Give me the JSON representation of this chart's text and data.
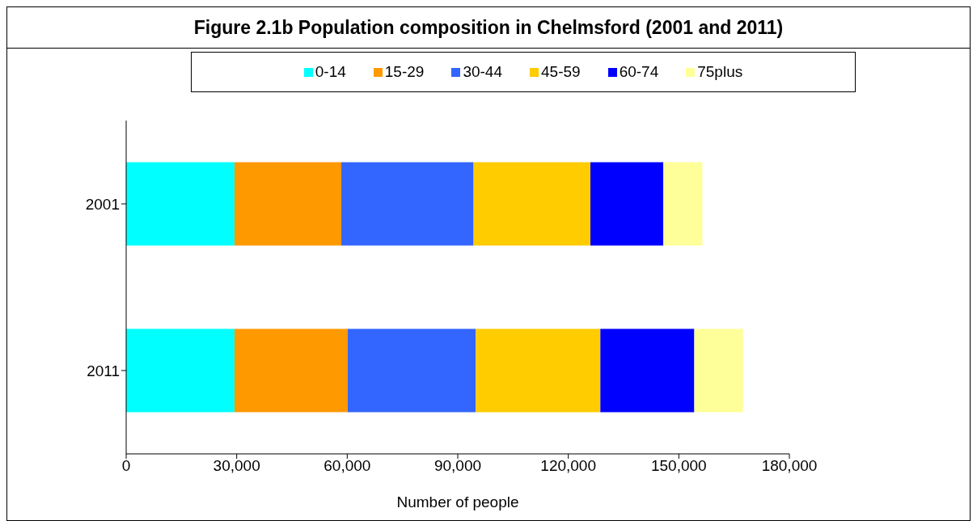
{
  "chart_data": {
    "type": "bar",
    "title": "Figure 2.1b Population composition in Chelmsford (2001 and 2011)",
    "xlabel": "Number of people",
    "orientation": "horizontal",
    "stacked": true,
    "categories": [
      "2001",
      "2011"
    ],
    "series": [
      {
        "name": "0-14",
        "color": "#00ffff",
        "values": [
          29400,
          29400
        ]
      },
      {
        "name": "15-29",
        "color": "#ff9900",
        "values": [
          29000,
          30700
        ]
      },
      {
        "name": "30-44",
        "color": "#3366ff",
        "values": [
          35900,
          34800
        ]
      },
      {
        "name": "45-59",
        "color": "#ffcc00",
        "values": [
          31700,
          33800
        ]
      },
      {
        "name": "60-74",
        "color": "#0000ff",
        "values": [
          19800,
          25500
        ]
      },
      {
        "name": "75plus",
        "color": "#ffff99",
        "values": [
          10600,
          13200
        ]
      }
    ],
    "xlim": [
      0,
      180000
    ],
    "xticks": [
      {
        "value": 0,
        "label": "0"
      },
      {
        "value": 30000,
        "label": "30,000"
      },
      {
        "value": 60000,
        "label": "60,000"
      },
      {
        "value": 90000,
        "label": "90,000"
      },
      {
        "value": 120000,
        "label": "120,000"
      },
      {
        "value": 150000,
        "label": "150,000"
      },
      {
        "value": 180000,
        "label": "180,000"
      }
    ],
    "grid": false,
    "legend": "top"
  }
}
